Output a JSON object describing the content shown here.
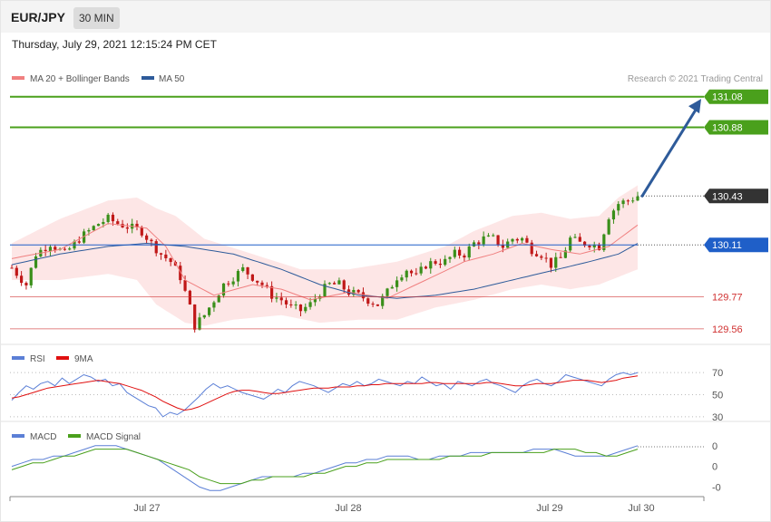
{
  "header": {
    "symbol": "EUR/JPY",
    "timeframe": "30 MIN"
  },
  "datetime": "Thursday, July 29, 2021 12:15:24 PM CET",
  "credit": "Research © 2021 Trading Central",
  "colors": {
    "bollinger": "#f08080",
    "bollinger_fill": "#fde3e3",
    "ma50": "#2e5b9a",
    "resistance": "#4aa01c",
    "support_red": "#d03030",
    "pivot": "#1f5fc8",
    "current": "#333333",
    "arrow": "#2e5b9a",
    "rsi": "#5b7fd6",
    "rsi_ma": "#e01010",
    "macd": "#5b7fd6",
    "macd_signal": "#4aa01c",
    "up_candle": "#3a8f1a",
    "down_candle": "#c01818"
  },
  "chart_data": [
    {
      "type": "candlestick",
      "name": "price",
      "legend": [
        {
          "label": "MA 20 + Bollinger Bands",
          "color": "#f08080"
        },
        {
          "label": "MA 50",
          "color": "#2e5b9a"
        }
      ],
      "ylim": [
        129.5,
        131.12
      ],
      "x_ticks": [
        "Jul 27",
        "Jul 28",
        "Jul 29",
        "Jul 30"
      ],
      "levels": [
        {
          "value": 131.08,
          "label": "131.08",
          "kind": "resistance"
        },
        {
          "value": 130.88,
          "label": "130.88",
          "kind": "resistance"
        },
        {
          "value": 130.43,
          "label": "130.43",
          "kind": "current"
        },
        {
          "value": 130.11,
          "label": "130.11",
          "kind": "pivot"
        },
        {
          "value": 129.77,
          "label": "129.77",
          "kind": "support"
        },
        {
          "value": 129.56,
          "label": "129.56",
          "kind": "support"
        }
      ],
      "projection": {
        "from": 130.43,
        "to": 131.03
      },
      "close_path": [
        [
          0,
          129.96
        ],
        [
          3,
          129.85
        ],
        [
          5,
          130.05
        ],
        [
          8,
          130.12
        ],
        [
          11,
          130.05
        ],
        [
          14,
          130.15
        ],
        [
          16,
          130.2
        ],
        [
          18,
          130.25
        ],
        [
          20,
          130.28
        ],
        [
          22,
          130.25
        ],
        [
          25,
          130.22
        ],
        [
          27,
          130.2
        ],
        [
          29,
          130.12
        ],
        [
          31,
          130.05
        ],
        [
          33,
          130.0
        ],
        [
          35,
          129.9
        ],
        [
          37,
          129.7
        ],
        [
          38,
          129.58
        ],
        [
          40,
          129.65
        ],
        [
          42,
          129.75
        ],
        [
          44,
          129.85
        ],
        [
          46,
          129.9
        ],
        [
          48,
          129.95
        ],
        [
          50,
          129.9
        ],
        [
          52,
          129.85
        ],
        [
          54,
          129.78
        ],
        [
          56,
          129.75
        ],
        [
          58,
          129.7
        ],
        [
          60,
          129.68
        ],
        [
          62,
          129.72
        ],
        [
          64,
          129.8
        ],
        [
          66,
          129.85
        ],
        [
          68,
          129.85
        ],
        [
          70,
          129.8
        ],
        [
          72,
          129.78
        ],
        [
          74,
          129.75
        ],
        [
          76,
          129.72
        ],
        [
          78,
          129.8
        ],
        [
          80,
          129.9
        ],
        [
          82,
          129.95
        ],
        [
          84,
          129.9
        ],
        [
          86,
          129.98
        ],
        [
          88,
          130.0
        ],
        [
          90,
          130.0
        ],
        [
          92,
          130.05
        ],
        [
          94,
          130.05
        ],
        [
          96,
          130.12
        ],
        [
          98,
          130.15
        ],
        [
          100,
          130.15
        ],
        [
          102,
          130.1
        ],
        [
          104,
          130.15
        ],
        [
          106,
          130.15
        ],
        [
          108,
          130.08
        ],
        [
          110,
          130.05
        ],
        [
          112,
          129.98
        ],
        [
          114,
          130.02
        ],
        [
          116,
          130.15
        ],
        [
          118,
          130.12
        ],
        [
          120,
          130.12
        ],
        [
          122,
          130.1
        ],
        [
          124,
          130.3
        ],
        [
          126,
          130.38
        ],
        [
          128,
          130.4
        ],
        [
          130,
          130.43
        ]
      ],
      "ma20_path": [
        [
          0,
          130.02
        ],
        [
          10,
          130.08
        ],
        [
          20,
          130.25
        ],
        [
          28,
          130.22
        ],
        [
          32,
          130.1
        ],
        [
          36,
          129.88
        ],
        [
          42,
          129.78
        ],
        [
          50,
          129.85
        ],
        [
          56,
          129.82
        ],
        [
          62,
          129.75
        ],
        [
          70,
          129.8
        ],
        [
          78,
          129.76
        ],
        [
          86,
          129.88
        ],
        [
          94,
          130.0
        ],
        [
          100,
          130.05
        ],
        [
          106,
          130.12
        ],
        [
          112,
          130.08
        ],
        [
          118,
          130.05
        ],
        [
          124,
          130.1
        ],
        [
          130,
          130.24
        ]
      ],
      "ma50_path": [
        [
          0,
          129.98
        ],
        [
          10,
          130.05
        ],
        [
          20,
          130.1
        ],
        [
          28,
          130.12
        ],
        [
          36,
          130.1
        ],
        [
          46,
          130.05
        ],
        [
          56,
          129.95
        ],
        [
          64,
          129.85
        ],
        [
          72,
          129.78
        ],
        [
          80,
          129.76
        ],
        [
          88,
          129.78
        ],
        [
          96,
          129.82
        ],
        [
          104,
          129.88
        ],
        [
          112,
          129.94
        ],
        [
          120,
          130.0
        ],
        [
          126,
          130.05
        ],
        [
          130,
          130.12
        ]
      ],
      "bb_upper_path": [
        [
          0,
          130.12
        ],
        [
          10,
          130.28
        ],
        [
          20,
          130.4
        ],
        [
          26,
          130.42
        ],
        [
          30,
          130.35
        ],
        [
          34,
          130.3
        ],
        [
          40,
          130.15
        ],
        [
          50,
          130.05
        ],
        [
          60,
          129.95
        ],
        [
          70,
          129.95
        ],
        [
          80,
          130.0
        ],
        [
          90,
          130.1
        ],
        [
          96,
          130.2
        ],
        [
          104,
          130.3
        ],
        [
          110,
          130.32
        ],
        [
          116,
          130.28
        ],
        [
          122,
          130.3
        ],
        [
          126,
          130.42
        ],
        [
          130,
          130.5
        ]
      ],
      "bb_lower_path": [
        [
          0,
          129.88
        ],
        [
          10,
          129.88
        ],
        [
          20,
          129.92
        ],
        [
          26,
          129.88
        ],
        [
          30,
          129.72
        ],
        [
          36,
          129.6
        ],
        [
          40,
          129.58
        ],
        [
          46,
          129.62
        ],
        [
          56,
          129.65
        ],
        [
          64,
          129.6
        ],
        [
          72,
          129.62
        ],
        [
          80,
          129.62
        ],
        [
          88,
          129.7
        ],
        [
          96,
          129.75
        ],
        [
          104,
          129.82
        ],
        [
          110,
          129.85
        ],
        [
          116,
          129.82
        ],
        [
          122,
          129.85
        ],
        [
          126,
          129.9
        ],
        [
          130,
          129.95
        ]
      ]
    },
    {
      "type": "line",
      "name": "rsi",
      "legend": [
        {
          "label": "RSI",
          "color": "#5b7fd6"
        },
        {
          "label": "9MA",
          "color": "#e01010"
        }
      ],
      "ylim": [
        25,
        75
      ],
      "y_ticks": [
        70,
        50,
        30
      ],
      "series": [
        {
          "name": "RSI",
          "values": [
            45,
            52,
            58,
            55,
            60,
            62,
            58,
            65,
            60,
            64,
            68,
            66,
            62,
            64,
            58,
            60,
            52,
            48,
            44,
            40,
            38,
            30,
            34,
            32,
            36,
            42,
            48,
            55,
            60,
            56,
            58,
            55,
            52,
            50,
            48,
            46,
            50,
            55,
            52,
            58,
            62,
            60,
            58,
            55,
            52,
            56,
            60,
            58,
            62,
            58,
            60,
            64,
            62,
            60,
            58,
            62,
            60,
            66,
            62,
            58,
            60,
            55,
            62,
            60,
            58,
            62,
            64,
            60,
            58,
            55,
            52,
            58,
            62,
            64,
            60,
            58,
            62,
            68,
            66,
            64,
            62,
            60,
            58,
            64,
            68,
            70,
            68,
            70
          ]
        },
        {
          "name": "9MA",
          "values": [
            47,
            48,
            50,
            52,
            54,
            56,
            57,
            58,
            59,
            60,
            61,
            62,
            63,
            62,
            61,
            60,
            58,
            56,
            54,
            51,
            48,
            44,
            41,
            38,
            36,
            37,
            39,
            42,
            45,
            48,
            51,
            53,
            54,
            54,
            53,
            52,
            51,
            51,
            52,
            53,
            54,
            55,
            56,
            56,
            56,
            57,
            57,
            57,
            58,
            58,
            59,
            59,
            60,
            60,
            60,
            60,
            60,
            60,
            61,
            61,
            60,
            60,
            60,
            60,
            60,
            60,
            61,
            61,
            60,
            59,
            58,
            58,
            59,
            60,
            60,
            60,
            61,
            62,
            63,
            63,
            63,
            62,
            61,
            62,
            63,
            65,
            66,
            67
          ]
        }
      ]
    },
    {
      "type": "line",
      "name": "macd",
      "legend": [
        {
          "label": "MACD",
          "color": "#5b7fd6"
        },
        {
          "label": "MACD Signal",
          "color": "#4aa01c"
        }
      ],
      "ylim": [
        -0.11,
        0.04
      ],
      "y_ticks": [
        {
          "value": 0.03,
          "label": "0"
        },
        {
          "value": -0.03,
          "label": "0"
        },
        {
          "value": -0.09,
          "label": "-0"
        }
      ],
      "series": [
        {
          "name": "MACD",
          "values": [
            -0.03,
            -0.02,
            -0.01,
            -0.01,
            0.0,
            0.0,
            0.01,
            0.02,
            0.03,
            0.03,
            0.03,
            0.02,
            0.01,
            0.0,
            -0.01,
            -0.03,
            -0.05,
            -0.07,
            -0.09,
            -0.1,
            -0.1,
            -0.09,
            -0.08,
            -0.07,
            -0.06,
            -0.06,
            -0.06,
            -0.06,
            -0.05,
            -0.05,
            -0.04,
            -0.03,
            -0.02,
            -0.02,
            -0.01,
            -0.01,
            0.0,
            0.0,
            0.0,
            -0.01,
            -0.01,
            0.0,
            0.0,
            0.0,
            0.01,
            0.01,
            0.01,
            0.01,
            0.01,
            0.01,
            0.02,
            0.02,
            0.02,
            0.01,
            0.0,
            0.0,
            0.0,
            0.0,
            0.01,
            0.02,
            0.03
          ]
        },
        {
          "name": "MACD Signal",
          "values": [
            -0.04,
            -0.03,
            -0.02,
            -0.02,
            -0.01,
            0.0,
            0.0,
            0.01,
            0.02,
            0.02,
            0.02,
            0.02,
            0.01,
            0.0,
            -0.01,
            -0.02,
            -0.03,
            -0.04,
            -0.06,
            -0.07,
            -0.08,
            -0.08,
            -0.08,
            -0.07,
            -0.07,
            -0.06,
            -0.06,
            -0.06,
            -0.06,
            -0.05,
            -0.05,
            -0.04,
            -0.03,
            -0.03,
            -0.02,
            -0.02,
            -0.01,
            -0.01,
            -0.01,
            -0.01,
            -0.01,
            -0.01,
            0.0,
            0.0,
            0.0,
            0.0,
            0.01,
            0.01,
            0.01,
            0.01,
            0.01,
            0.01,
            0.02,
            0.02,
            0.02,
            0.01,
            0.01,
            0.0,
            0.0,
            0.01,
            0.02
          ]
        }
      ]
    }
  ]
}
